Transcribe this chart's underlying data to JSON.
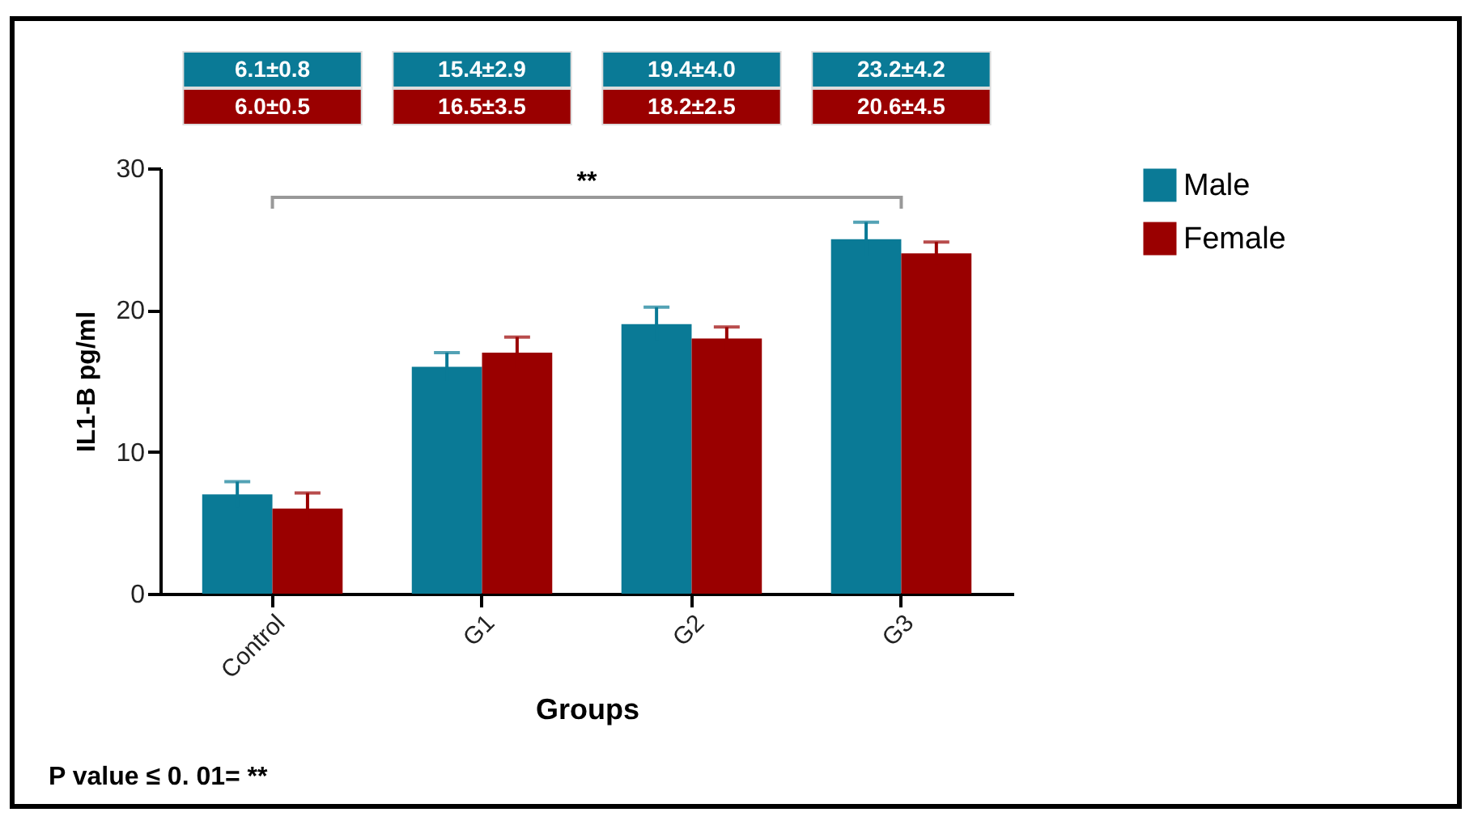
{
  "chart_data": {
    "type": "bar",
    "xlabel": "Groups",
    "ylabel": "IL1-B pg/ml",
    "categories": [
      "Control",
      "G1",
      "G2",
      "G3"
    ],
    "series": [
      {
        "name": "Male",
        "color": "#0a7a96",
        "values": [
          7.0,
          16.0,
          19.0,
          25.0
        ],
        "errors": [
          0.9,
          1.0,
          1.2,
          1.2
        ]
      },
      {
        "name": "Female",
        "color": "#9a0000",
        "values": [
          6.0,
          17.0,
          18.0,
          24.0
        ],
        "errors": [
          1.1,
          1.1,
          0.8,
          0.8
        ]
      }
    ],
    "ylim": [
      0,
      30
    ],
    "yticks": [
      0,
      10,
      20,
      30
    ],
    "grid": false,
    "legend": "top right",
    "annotations": [
      "**",
      "P value ≤ 0. 01= **",
      "6.1±0.8",
      "15.4±2.9",
      "19.4±4.0",
      "23.2±4.2",
      "6.0±0.5",
      "16.5±3.5",
      "18.2±2.5",
      "20.6±4.5"
    ]
  }
}
